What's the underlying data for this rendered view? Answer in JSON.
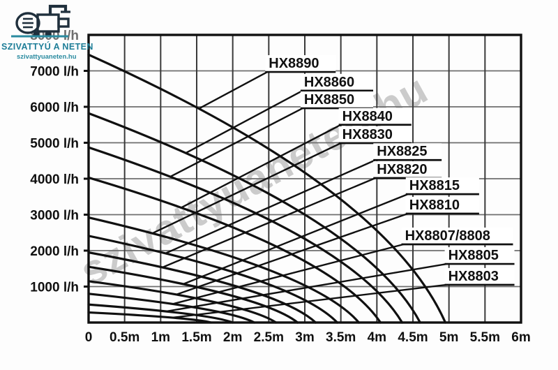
{
  "logo": {
    "brand": "SZIVATTYÚ A NETEN",
    "site": "szivattyuaneten.hu",
    "teal": "#2a8ba0",
    "dark": "#20303d"
  },
  "watermark": {
    "text": "szivattyuaneten.hu"
  },
  "colors": {
    "ink": "#101010",
    "grid_v": "#3a3a3a",
    "grid_h": "#6e6e6e",
    "dim_tick": "#6f6f6f"
  },
  "chart_data": {
    "type": "line",
    "title": "",
    "x_unit": "m",
    "y_unit": "l/h",
    "xlim": [
      0,
      6
    ],
    "ylim": [
      0,
      8000
    ],
    "grid": {
      "x_step_m": 0.5,
      "y_step_lh": 1000,
      "grid_on": true
    },
    "x_ticks": [
      {
        "label": "0",
        "value": 0
      },
      {
        "label": "0.5m",
        "value": 0.5
      },
      {
        "label": "1m",
        "value": 1
      },
      {
        "label": "1.5m",
        "value": 1.5
      },
      {
        "label": "2m",
        "value": 2
      },
      {
        "label": "2.5m",
        "value": 2.5
      },
      {
        "label": "3m",
        "value": 3
      },
      {
        "label": "3.5m",
        "value": 3.5
      },
      {
        "label": "4m",
        "value": 4
      },
      {
        "label": "4.5m",
        "value": 4.5
      },
      {
        "label": "5m",
        "value": 5
      },
      {
        "label": "5.5m",
        "value": 5.5
      },
      {
        "label": "6m",
        "value": 6
      }
    ],
    "y_ticks": [
      {
        "label": "8000 l/h",
        "value": 8000,
        "dimmed": true
      },
      {
        "label": "7000 l/h",
        "value": 7000
      },
      {
        "label": "6000 l/h",
        "value": 6000
      },
      {
        "label": "5000 l/h",
        "value": 5000
      },
      {
        "label": "4000 l/h",
        "value": 4000
      },
      {
        "label": "3000 l/h",
        "value": 3000
      },
      {
        "label": "2000 l/h",
        "value": 2000
      },
      {
        "label": "1000 l/h",
        "value": 1000
      }
    ],
    "series": [
      {
        "name": "HX8890",
        "flow_at_0m_lh": 7450,
        "max_head_m": 4.95,
        "label_anchor": {
          "x_m": 2.48,
          "y_lh": 6970
        },
        "underline_m": 0.9,
        "leader_slope": 0.55
      },
      {
        "name": "HX8860",
        "flow_at_0m_lh": 5820,
        "max_head_m": 4.6,
        "label_anchor": {
          "x_m": 2.97,
          "y_lh": 6450
        },
        "underline_m": 0.93,
        "leader_slope": 0.55
      },
      {
        "name": "HX8850",
        "flow_at_0m_lh": 4870,
        "max_head_m": 4.35,
        "label_anchor": {
          "x_m": 2.97,
          "y_lh": 5960
        },
        "underline_m": 0.93,
        "leader_slope": 0.52
      },
      {
        "name": "HX8840",
        "flow_at_0m_lh": 4030,
        "max_head_m": 4.05,
        "label_anchor": {
          "x_m": 3.5,
          "y_lh": 5500
        },
        "underline_m": 0.93,
        "leader_slope": 0.52
      },
      {
        "name": "HX8830",
        "flow_at_0m_lh": 2920,
        "max_head_m": 3.75,
        "label_anchor": {
          "x_m": 3.5,
          "y_lh": 4990
        },
        "underline_m": 0.93,
        "leader_slope": 0.48
      },
      {
        "name": "HX8825",
        "flow_at_0m_lh": 2410,
        "max_head_m": 3.45,
        "label_anchor": {
          "x_m": 3.98,
          "y_lh": 4520
        },
        "underline_m": 0.87,
        "leader_slope": 0.45
      },
      {
        "name": "HX8820",
        "flow_at_0m_lh": 1950,
        "max_head_m": 3.15,
        "label_anchor": {
          "x_m": 3.98,
          "y_lh": 4020
        },
        "underline_m": 0.87,
        "leader_slope": 0.42
      },
      {
        "name": "HX8815",
        "flow_at_0m_lh": 1550,
        "max_head_m": 2.9,
        "label_anchor": {
          "x_m": 4.43,
          "y_lh": 3570
        },
        "underline_m": 0.94,
        "leader_slope": 0.4
      },
      {
        "name": "HX8810",
        "flow_at_0m_lh": 1150,
        "max_head_m": 2.6,
        "label_anchor": {
          "x_m": 4.43,
          "y_lh": 3030
        },
        "underline_m": 0.94,
        "leader_slope": 0.35
      },
      {
        "name": "HX8807/8808",
        "flow_at_0m_lh": 800,
        "max_head_m": 2.3,
        "label_anchor": {
          "x_m": 4.37,
          "y_lh": 2175
        },
        "underline_m": 1.47,
        "leader_slope": 0.26
      },
      {
        "name": "HX8805",
        "flow_at_0m_lh": 500,
        "max_head_m": 2.0,
        "label_anchor": {
          "x_m": 4.97,
          "y_lh": 1630
        },
        "underline_m": 0.89,
        "leader_slope": 0.17
      },
      {
        "name": "HX8803",
        "flow_at_0m_lh": 280,
        "max_head_m": 1.7,
        "label_anchor": {
          "x_m": 4.97,
          "y_lh": 1050
        },
        "underline_m": 0.89,
        "leader_slope": 0.12
      }
    ]
  }
}
